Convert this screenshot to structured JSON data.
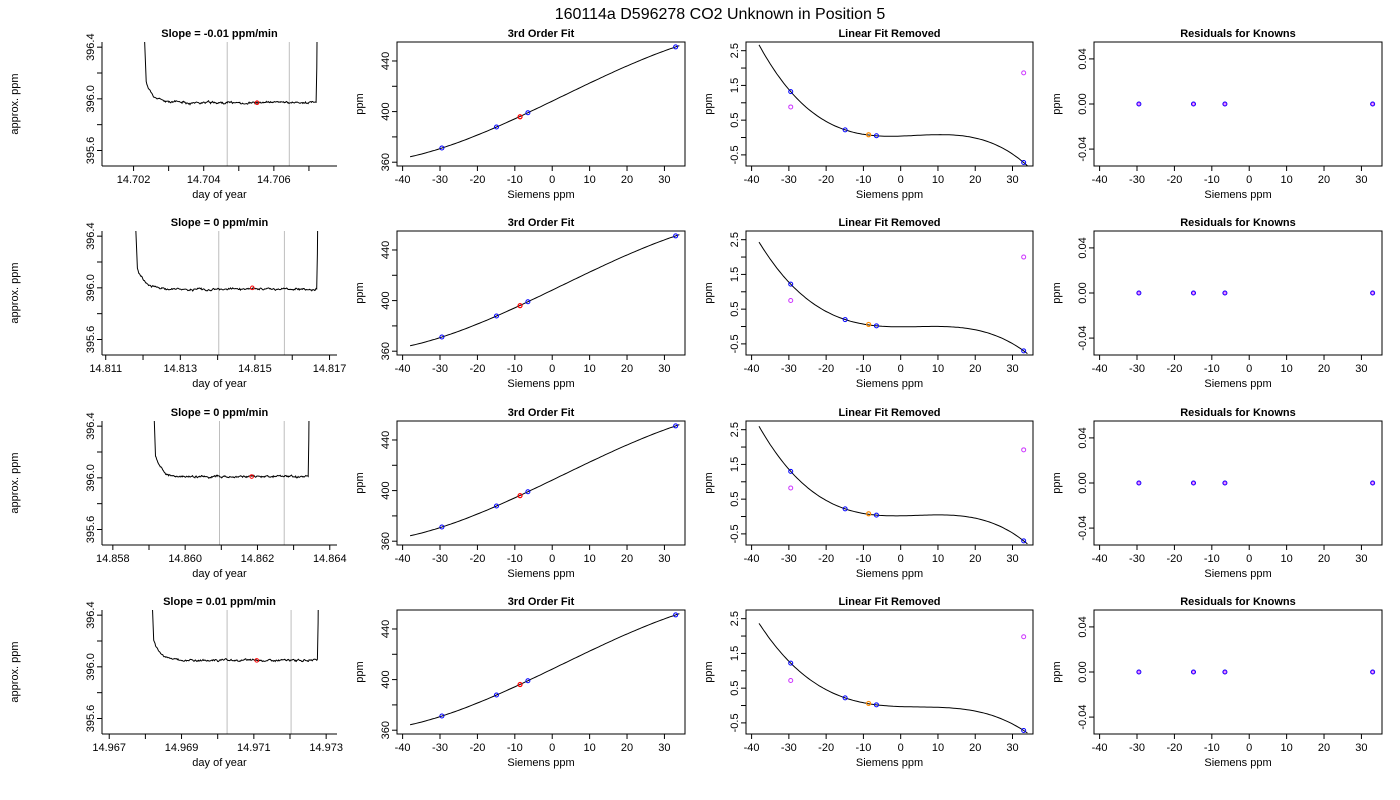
{
  "figure": {
    "title": "160114a     D596278    CO2 Unknown in Position  5"
  },
  "colors": {
    "axis": "#000000",
    "trace": "#000000",
    "window_line": "#bebebe",
    "known_point": "#0000ff",
    "unknown_point": "#ff0000",
    "unknown_in_fit": "#ff8c00",
    "raw_point": "#cc33ff"
  },
  "chart_data": [
    {
      "type": "line",
      "panel": "trace",
      "title": "Slope =  -0.01  ppm/min",
      "xlabel": "day of year",
      "ylabel": "approx. ppm",
      "xlim": [
        14.7011,
        14.7078
      ],
      "ylim": [
        395.48,
        396.44
      ],
      "xticks": [
        14.702,
        14.703,
        14.704,
        14.705,
        14.706,
        14.707
      ],
      "xtick_labels": [
        "14.702",
        "",
        "14.704",
        "",
        "14.706",
        ""
      ],
      "yticks": [
        395.6,
        395.8,
        396.0,
        396.2,
        396.4
      ],
      "ytick_labels": [
        "395.6",
        "",
        "396.0",
        "",
        "396.4"
      ],
      "window_lines": [
        14.70467,
        14.70644
      ],
      "window_marker": {
        "x": 14.70552,
        "y": 395.97
      },
      "trace": {
        "x_start": 14.70236,
        "x_end": 14.70728,
        "flat": 395.97,
        "end_rise": 2.5,
        "noise": 0.014
      }
    },
    {
      "type": "scatter",
      "panel": "fit",
      "title": "3rd Order Fit",
      "xlabel": "Siemens ppm",
      "ylabel": "ppm",
      "xlim": [
        -41.5,
        35.5
      ],
      "ylim": [
        357,
        455
      ],
      "xticks": [
        -40,
        -30,
        -20,
        -10,
        0,
        10,
        20,
        30
      ],
      "yticks": [
        360,
        380,
        400,
        420,
        440
      ],
      "ytick_labels": [
        "360",
        "",
        "400",
        "",
        "440"
      ],
      "curve_domain": [
        -38,
        34
      ],
      "known_x": [
        -29.5,
        -14.9,
        -6.5,
        33
      ],
      "known_y": [
        371.2,
        387.8,
        399.1,
        451.1
      ],
      "unknown": {
        "x": -8.6,
        "y": 395.9
      }
    },
    {
      "type": "scatter",
      "panel": "linear_removed",
      "title": "Linear Fit Removed",
      "xlabel": "Siemens ppm",
      "ylabel": "ppm",
      "xlim": [
        -41.5,
        35.5
      ],
      "ylim": [
        -0.82,
        2.75
      ],
      "xticks": [
        -40,
        -30,
        -20,
        -10,
        0,
        10,
        20,
        30
      ],
      "yticks": [
        -0.5,
        0,
        0.5,
        1,
        1.5,
        2,
        2.5
      ],
      "ytick_labels": [
        "-0.5",
        "",
        "0.5",
        "",
        "1.5",
        "",
        "2.5"
      ],
      "curve_domain": [
        -38,
        34
      ],
      "known_x": [
        -29.5,
        -14.9,
        -6.5,
        33
      ],
      "known_y": [
        1.32,
        0.22,
        0.05,
        -0.72
      ],
      "raw_x": [
        -29.5,
        33
      ],
      "raw_y": [
        0.88,
        1.86
      ],
      "unknown": {
        "x": -8.6,
        "y": 0.08
      }
    },
    {
      "type": "scatter",
      "panel": "residuals",
      "title": "Residuals for Knowns",
      "xlabel": "Siemens ppm",
      "ylabel": "ppm",
      "xlim": [
        -41.5,
        35.5
      ],
      "ylim": [
        -0.055,
        0.055
      ],
      "xticks": [
        -40,
        -30,
        -20,
        -10,
        0,
        10,
        20,
        30
      ],
      "yticks": [
        -0.04,
        0.0,
        0.04
      ],
      "ytick_labels": [
        "-0.04",
        "0.00",
        "0.04"
      ],
      "known_x": [
        -29.5,
        -14.9,
        -6.5,
        33
      ],
      "known_y": [
        0,
        0,
        0,
        0
      ]
    },
    {
      "type": "line",
      "panel": "trace",
      "title": "Slope =  0  ppm/min",
      "xlabel": "day of year",
      "ylabel": "approx. ppm",
      "xlim": [
        14.8109,
        14.8172
      ],
      "ylim": [
        395.48,
        396.44
      ],
      "xticks": [
        14.811,
        14.812,
        14.813,
        14.814,
        14.815,
        14.816,
        14.817
      ],
      "xtick_labels": [
        "14.811",
        "",
        "14.813",
        "",
        "14.815",
        "",
        "14.817"
      ],
      "yticks": [
        395.6,
        395.8,
        396.0,
        396.2,
        396.4
      ],
      "ytick_labels": [
        "395.6",
        "",
        "396.0",
        "",
        "396.4"
      ],
      "window_lines": [
        14.81403,
        14.81579
      ],
      "window_marker": {
        "x": 14.81493,
        "y": 396.0
      },
      "trace": {
        "x_start": 14.81185,
        "x_end": 14.81673,
        "flat": 395.99,
        "end_rise": 2.5,
        "noise": 0.014
      }
    },
    {
      "type": "scatter",
      "panel": "fit",
      "title": "3rd Order Fit",
      "xlabel": "Siemens ppm",
      "ylabel": "ppm",
      "xlim": [
        -41.5,
        35.5
      ],
      "ylim": [
        357,
        455
      ],
      "xticks": [
        -40,
        -30,
        -20,
        -10,
        0,
        10,
        20,
        30
      ],
      "yticks": [
        360,
        380,
        400,
        420,
        440
      ],
      "ytick_labels": [
        "360",
        "",
        "400",
        "",
        "440"
      ],
      "curve_domain": [
        -38,
        34
      ],
      "known_x": [
        -29.5,
        -14.9,
        -6.5,
        33
      ],
      "known_y": [
        371.2,
        387.8,
        399.1,
        451.1
      ],
      "unknown": {
        "x": -8.6,
        "y": 396.0
      }
    },
    {
      "type": "scatter",
      "panel": "linear_removed",
      "title": "Linear Fit Removed",
      "xlabel": "Siemens ppm",
      "ylabel": "ppm",
      "xlim": [
        -41.5,
        35.5
      ],
      "ylim": [
        -0.82,
        2.75
      ],
      "xticks": [
        -40,
        -30,
        -20,
        -10,
        0,
        10,
        20,
        30
      ],
      "yticks": [
        -0.5,
        0,
        0.5,
        1,
        1.5,
        2,
        2.5
      ],
      "ytick_labels": [
        "-0.5",
        "",
        "0.5",
        "",
        "1.5",
        "",
        "2.5"
      ],
      "curve_domain": [
        -38,
        34
      ],
      "known_x": [
        -29.5,
        -14.9,
        -6.5,
        33
      ],
      "known_y": [
        1.22,
        0.2,
        0.02,
        -0.7
      ],
      "raw_x": [
        -29.5,
        33
      ],
      "raw_y": [
        0.75,
        2.0
      ],
      "unknown": {
        "x": -8.6,
        "y": 0.06
      }
    },
    {
      "type": "scatter",
      "panel": "residuals",
      "title": "Residuals for Knowns",
      "xlabel": "Siemens ppm",
      "ylabel": "ppm",
      "xlim": [
        -41.5,
        35.5
      ],
      "ylim": [
        -0.055,
        0.055
      ],
      "xticks": [
        -40,
        -30,
        -20,
        -10,
        0,
        10,
        20,
        30
      ],
      "yticks": [
        -0.04,
        0.0,
        0.04
      ],
      "ytick_labels": [
        "-0.04",
        "0.00",
        "0.04"
      ],
      "known_x": [
        -29.5,
        -14.9,
        -6.5,
        33
      ],
      "known_y": [
        0,
        0,
        0,
        0
      ]
    },
    {
      "type": "line",
      "panel": "trace",
      "title": "Slope =  0  ppm/min",
      "xlabel": "day of year",
      "ylabel": "approx. ppm",
      "xlim": [
        14.8577,
        14.8642
      ],
      "ylim": [
        395.48,
        396.44
      ],
      "xticks": [
        14.858,
        14.859,
        14.86,
        14.861,
        14.862,
        14.863,
        14.864
      ],
      "xtick_labels": [
        "14.858",
        "",
        "14.860",
        "",
        "14.862",
        "",
        "14.864"
      ],
      "yticks": [
        395.6,
        395.8,
        396.0,
        396.2,
        396.4
      ],
      "ytick_labels": [
        "395.6",
        "",
        "396.0",
        "",
        "396.4"
      ],
      "window_lines": [
        14.86095,
        14.86274
      ],
      "window_marker": {
        "x": 14.86184,
        "y": 396.01
      },
      "trace": {
        "x_start": 14.85918,
        "x_end": 14.86347,
        "flat": 396.01,
        "end_rise": 2.5,
        "noise": 0.012
      }
    },
    {
      "type": "scatter",
      "panel": "fit",
      "title": "3rd Order Fit",
      "xlabel": "Siemens ppm",
      "ylabel": "ppm",
      "xlim": [
        -41.5,
        35.5
      ],
      "ylim": [
        357,
        455
      ],
      "xticks": [
        -40,
        -30,
        -20,
        -10,
        0,
        10,
        20,
        30
      ],
      "yticks": [
        360,
        380,
        400,
        420,
        440
      ],
      "ytick_labels": [
        "360",
        "",
        "400",
        "",
        "440"
      ],
      "curve_domain": [
        -38,
        34
      ],
      "known_x": [
        -29.5,
        -14.9,
        -6.5,
        33
      ],
      "known_y": [
        371.2,
        387.8,
        399.1,
        451.1
      ],
      "unknown": {
        "x": -8.6,
        "y": 396.0
      }
    },
    {
      "type": "scatter",
      "panel": "linear_removed",
      "title": "Linear Fit Removed",
      "xlabel": "Siemens ppm",
      "ylabel": "ppm",
      "xlim": [
        -41.5,
        35.5
      ],
      "ylim": [
        -0.82,
        2.75
      ],
      "xticks": [
        -40,
        -30,
        -20,
        -10,
        0,
        10,
        20,
        30
      ],
      "yticks": [
        -0.5,
        0,
        0.5,
        1,
        1.5,
        2,
        2.5
      ],
      "ytick_labels": [
        "-0.5",
        "",
        "0.5",
        "",
        "1.5",
        "",
        "2.5"
      ],
      "curve_domain": [
        -38,
        34
      ],
      "known_x": [
        -29.5,
        -14.9,
        -6.5,
        33
      ],
      "known_y": [
        1.3,
        0.22,
        0.04,
        -0.7
      ],
      "raw_x": [
        -29.5,
        33
      ],
      "raw_y": [
        0.82,
        1.92
      ],
      "unknown": {
        "x": -8.6,
        "y": 0.08
      }
    },
    {
      "type": "scatter",
      "panel": "residuals",
      "title": "Residuals for Knowns",
      "xlabel": "Siemens ppm",
      "ylabel": "ppm",
      "xlim": [
        -41.5,
        35.5
      ],
      "ylim": [
        -0.055,
        0.055
      ],
      "xticks": [
        -40,
        -30,
        -20,
        -10,
        0,
        10,
        20,
        30
      ],
      "yticks": [
        -0.04,
        0.0,
        0.04
      ],
      "ytick_labels": [
        "-0.04",
        "0.00",
        "0.04"
      ],
      "known_x": [
        -29.5,
        -14.9,
        -6.5,
        33
      ],
      "known_y": [
        0,
        0,
        0,
        0
      ]
    },
    {
      "type": "line",
      "panel": "trace",
      "title": "Slope =  0.01  ppm/min",
      "xlabel": "day of year",
      "ylabel": "approx. ppm",
      "xlim": [
        14.9668,
        14.9733
      ],
      "ylim": [
        395.48,
        396.44
      ],
      "xticks": [
        14.967,
        14.968,
        14.969,
        14.97,
        14.971,
        14.972,
        14.973
      ],
      "xtick_labels": [
        "14.967",
        "",
        "14.969",
        "",
        "14.971",
        "",
        "14.973"
      ],
      "yticks": [
        395.6,
        395.8,
        396.0,
        396.2,
        396.4
      ],
      "ytick_labels": [
        "395.6",
        "",
        "396.0",
        "",
        "396.4"
      ],
      "window_lines": [
        14.97026,
        14.97203
      ],
      "window_marker": {
        "x": 14.97108,
        "y": 396.05
      },
      "trace": {
        "x_start": 14.96823,
        "x_end": 14.97283,
        "flat": 396.05,
        "end_rise": 2.5,
        "noise": 0.012
      }
    },
    {
      "type": "scatter",
      "panel": "fit",
      "title": "3rd Order Fit",
      "xlabel": "Siemens ppm",
      "ylabel": "ppm",
      "xlim": [
        -41.5,
        35.5
      ],
      "ylim": [
        357,
        455
      ],
      "xticks": [
        -40,
        -30,
        -20,
        -10,
        0,
        10,
        20,
        30
      ],
      "yticks": [
        360,
        380,
        400,
        420,
        440
      ],
      "ytick_labels": [
        "360",
        "",
        "400",
        "",
        "440"
      ],
      "curve_domain": [
        -38,
        34
      ],
      "known_x": [
        -29.5,
        -14.9,
        -6.5,
        33
      ],
      "known_y": [
        371.2,
        387.8,
        399.1,
        451.1
      ],
      "unknown": {
        "x": -8.6,
        "y": 396.1
      }
    },
    {
      "type": "scatter",
      "panel": "linear_removed",
      "title": "Linear Fit Removed",
      "xlabel": "Siemens ppm",
      "ylabel": "ppm",
      "xlim": [
        -41.5,
        35.5
      ],
      "ylim": [
        -0.82,
        2.75
      ],
      "xticks": [
        -40,
        -30,
        -20,
        -10,
        0,
        10,
        20,
        30
      ],
      "yticks": [
        -0.5,
        0,
        0.5,
        1,
        1.5,
        2,
        2.5
      ],
      "ytick_labels": [
        "-0.5",
        "",
        "0.5",
        "",
        "1.5",
        "",
        "2.5"
      ],
      "curve_domain": [
        -38,
        34
      ],
      "known_x": [
        -29.5,
        -14.9,
        -6.5,
        33
      ],
      "known_y": [
        1.22,
        0.22,
        0.02,
        -0.72
      ],
      "raw_x": [
        -29.5,
        33
      ],
      "raw_y": [
        0.72,
        1.98
      ],
      "unknown": {
        "x": -8.6,
        "y": 0.06
      }
    },
    {
      "type": "scatter",
      "panel": "residuals",
      "title": "Residuals for Knowns",
      "xlabel": "Siemens ppm",
      "ylabel": "ppm",
      "xlim": [
        -41.5,
        35.5
      ],
      "ylim": [
        -0.055,
        0.055
      ],
      "xticks": [
        -40,
        -30,
        -20,
        -10,
        0,
        10,
        20,
        30
      ],
      "yticks": [
        -0.04,
        0.0,
        0.04
      ],
      "ytick_labels": [
        "-0.04",
        "0.00",
        "0.04"
      ],
      "known_x": [
        -29.5,
        -14.9,
        -6.5,
        33
      ],
      "known_y": [
        0,
        0,
        0,
        0
      ]
    }
  ]
}
